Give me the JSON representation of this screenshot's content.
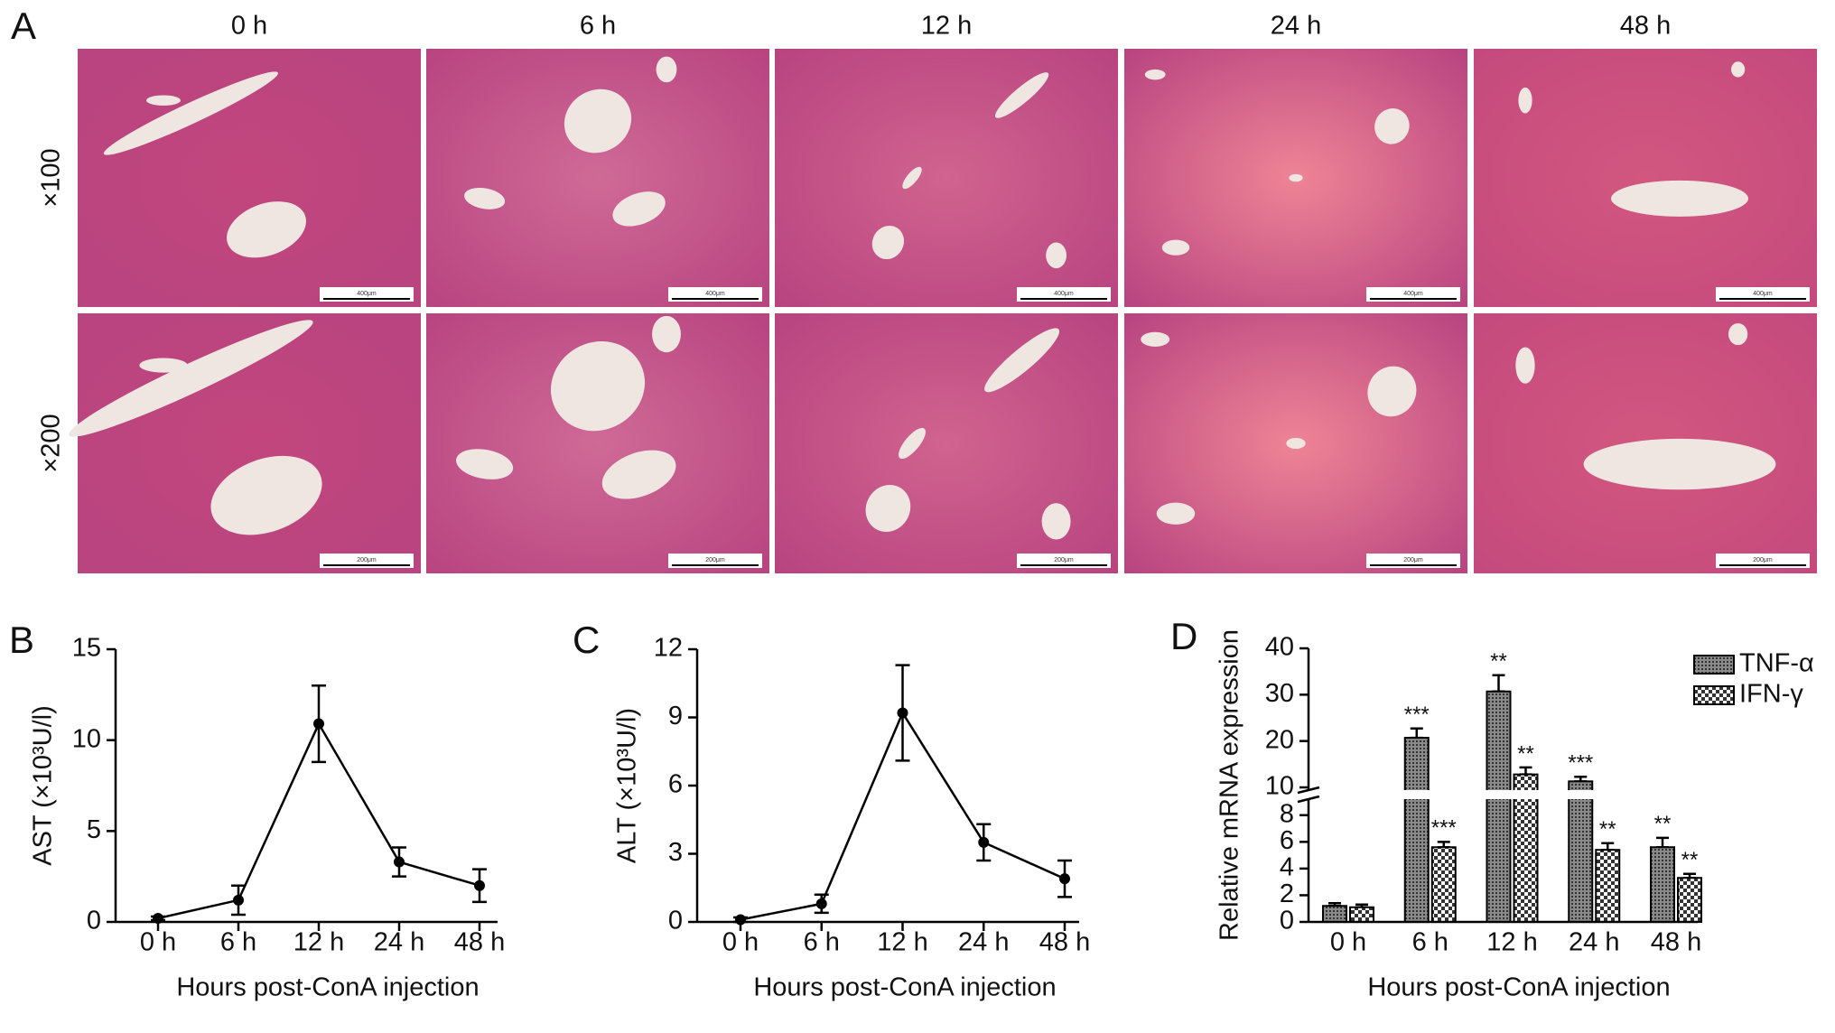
{
  "panel_labels": [
    "A",
    "B",
    "C",
    "D"
  ],
  "panel_a": {
    "column_labels": [
      "0 h",
      "6 h",
      "12 h",
      "24 h",
      "48 h"
    ],
    "row_labels": [
      "×100",
      "×200"
    ],
    "scale_bars": [
      "400μm",
      "200μm"
    ]
  },
  "chart_data": [
    {
      "type": "line",
      "categories": [
        "0 h",
        "6 h",
        "12 h",
        "24 h",
        "48 h"
      ],
      "values": [
        0.2,
        1.2,
        10.9,
        3.3,
        2.0
      ],
      "errors": [
        0.1,
        0.8,
        2.1,
        0.8,
        0.9
      ],
      "color": "#000000",
      "ylim": [
        0,
        15
      ],
      "yticks": [
        0,
        5,
        10,
        15
      ],
      "ylabel": "AST (×10³U/l)",
      "xlabel": "Hours post-ConA  injection"
    },
    {
      "type": "line",
      "categories": [
        "0 h",
        "6 h",
        "12 h",
        "24 h",
        "48 h"
      ],
      "values": [
        0.1,
        0.8,
        9.2,
        3.5,
        1.9
      ],
      "errors": [
        0.1,
        0.4,
        2.1,
        0.8,
        0.8
      ],
      "color": "#000000",
      "ylim": [
        0,
        12
      ],
      "yticks": [
        0,
        3,
        6,
        9,
        12
      ],
      "ylabel": "ALT (×10³U/l)",
      "xlabel": "Hours post-ConA injection"
    },
    {
      "type": "bar",
      "categories": [
        "0 h",
        "6 h",
        "12 h",
        "24 h",
        "48 h"
      ],
      "series": [
        {
          "name": "TNF-α",
          "color": "#8a8a8a",
          "values": [
            1.2,
            20.7,
            30.7,
            11.3,
            5.6
          ],
          "errors": [
            0.2,
            2.0,
            3.5,
            1.0,
            0.7
          ],
          "annotations": [
            null,
            "***",
            "**",
            "***",
            "**"
          ]
        },
        {
          "name": "IFN-γ",
          "color": "#ffffff",
          "values": [
            1.1,
            5.6,
            12.8,
            5.4,
            3.3
          ],
          "errors": [
            0.2,
            0.4,
            1.5,
            0.5,
            0.3
          ],
          "annotations": [
            null,
            "***",
            "**",
            "**",
            "**"
          ]
        }
      ],
      "ylim": [
        0,
        40
      ],
      "ybreak": [
        9,
        10
      ],
      "yticks": [
        0,
        2,
        4,
        6,
        8,
        10,
        20,
        30,
        40
      ],
      "ylabel": "Relative mRNA expression",
      "xlabel": "Hours post-ConA injection",
      "legend": "top-right"
    }
  ]
}
